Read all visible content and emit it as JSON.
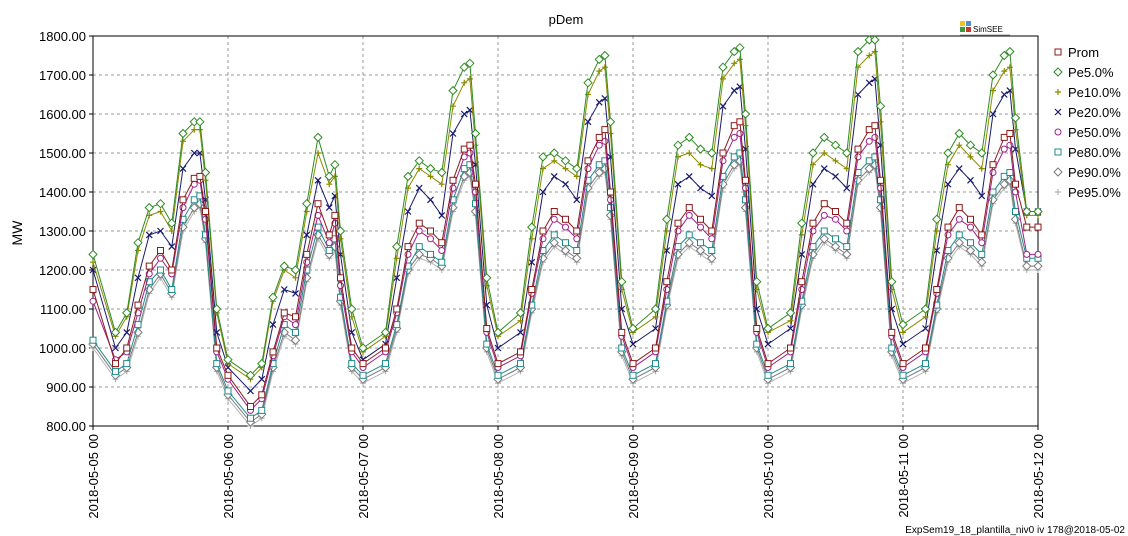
{
  "chart_data": {
    "type": "line",
    "title": "pDem",
    "xlabel": "",
    "ylabel": "MW",
    "ylim": [
      800,
      1800
    ],
    "yticks": [
      "800.00",
      "900.00",
      "1000.00",
      "1100.00",
      "1200.00",
      "1300.00",
      "1400.00",
      "1500.00",
      "1600.00",
      "1700.00",
      "1800.00"
    ],
    "xticks": [
      "2018-05-05 00",
      "2018-05-06 00",
      "2018-05-07 00",
      "2018-05-08 00",
      "2018-05-09 00",
      "2018-05-10 00",
      "2018-05-11 00",
      "2018-05-12 00"
    ],
    "xlim_hours": [
      0,
      168
    ],
    "grid": true,
    "legend_position": "right",
    "x_hours": [
      0,
      4,
      6,
      8,
      10,
      12,
      14,
      16,
      18,
      19,
      20,
      22,
      24,
      28,
      30,
      32,
      34,
      36,
      38,
      40,
      42,
      43,
      44,
      46,
      48,
      52,
      54,
      56,
      58,
      60,
      62,
      64,
      66,
      67,
      68,
      70,
      72,
      76,
      78,
      80,
      82,
      84,
      86,
      88,
      90,
      91,
      92,
      94,
      96,
      100,
      102,
      104,
      106,
      108,
      110,
      112,
      114,
      115,
      116,
      118,
      120,
      124,
      126,
      128,
      130,
      132,
      134,
      136,
      138,
      139,
      140,
      142,
      144,
      148,
      150,
      152,
      154,
      156,
      158,
      160,
      162,
      163,
      164,
      166,
      168
    ],
    "series": [
      {
        "name": "Prom",
        "color": "#8b1a1a",
        "marker": "square",
        "values": [
          1150,
          960,
          1000,
          1110,
          1210,
          1250,
          1200,
          1380,
          1435,
          1440,
          1350,
          1000,
          930,
          850,
          880,
          990,
          1090,
          1080,
          1240,
          1370,
          1290,
          1340,
          1180,
          1000,
          960,
          1000,
          1100,
          1260,
          1320,
          1300,
          1270,
          1430,
          1510,
          1520,
          1420,
          1050,
          960,
          990,
          1150,
          1300,
          1350,
          1330,
          1300,
          1480,
          1540,
          1560,
          1400,
          1040,
          960,
          1000,
          1170,
          1320,
          1360,
          1330,
          1300,
          1500,
          1570,
          1580,
          1430,
          1050,
          960,
          1000,
          1170,
          1320,
          1370,
          1350,
          1320,
          1510,
          1560,
          1570,
          1430,
          1040,
          960,
          1000,
          1150,
          1310,
          1360,
          1330,
          1290,
          1470,
          1540,
          1550,
          1420,
          1310,
          1310
        ]
      },
      {
        "name": "Pe5.0%",
        "color": "#2e8b22",
        "marker": "diamond",
        "values": [
          1240,
          1040,
          1090,
          1270,
          1360,
          1370,
          1320,
          1550,
          1580,
          1580,
          1450,
          1100,
          970,
          930,
          960,
          1130,
          1210,
          1200,
          1370,
          1540,
          1440,
          1470,
          1300,
          1100,
          1000,
          1040,
          1260,
          1440,
          1480,
          1460,
          1450,
          1660,
          1720,
          1730,
          1550,
          1180,
          1040,
          1090,
          1310,
          1490,
          1500,
          1480,
          1460,
          1680,
          1740,
          1750,
          1580,
          1170,
          1050,
          1100,
          1330,
          1520,
          1540,
          1510,
          1500,
          1720,
          1760,
          1770,
          1600,
          1170,
          1050,
          1090,
          1320,
          1500,
          1540,
          1520,
          1500,
          1760,
          1790,
          1790,
          1620,
          1170,
          1060,
          1100,
          1330,
          1500,
          1550,
          1520,
          1500,
          1700,
          1750,
          1760,
          1590,
          1350,
          1350
        ]
      },
      {
        "name": "Pe10.0%",
        "color": "#8b8b00",
        "marker": "plus",
        "values": [
          1220,
          1030,
          1080,
          1250,
          1340,
          1350,
          1300,
          1530,
          1560,
          1560,
          1430,
          1090,
          960,
          920,
          950,
          1120,
          1200,
          1180,
          1350,
          1500,
          1420,
          1440,
          1280,
          1080,
          990,
          1030,
          1230,
          1410,
          1460,
          1440,
          1420,
          1620,
          1680,
          1690,
          1520,
          1160,
          1030,
          1070,
          1280,
          1460,
          1480,
          1460,
          1440,
          1650,
          1710,
          1720,
          1550,
          1150,
          1040,
          1080,
          1300,
          1490,
          1500,
          1470,
          1460,
          1690,
          1730,
          1740,
          1570,
          1150,
          1040,
          1070,
          1290,
          1470,
          1500,
          1480,
          1460,
          1720,
          1750,
          1760,
          1580,
          1150,
          1040,
          1080,
          1300,
          1470,
          1520,
          1490,
          1460,
          1660,
          1710,
          1720,
          1560,
          1340,
          1340
        ]
      },
      {
        "name": "Pe20.0%",
        "color": "#1a1a6e",
        "marker": "x",
        "values": [
          1200,
          1000,
          1040,
          1180,
          1290,
          1300,
          1260,
          1460,
          1500,
          1500,
          1380,
          1040,
          950,
          890,
          920,
          1060,
          1150,
          1140,
          1290,
          1430,
          1360,
          1390,
          1240,
          1040,
          970,
          1010,
          1180,
          1350,
          1410,
          1380,
          1340,
          1550,
          1600,
          1610,
          1470,
          1110,
          1000,
          1040,
          1220,
          1400,
          1440,
          1420,
          1380,
          1580,
          1630,
          1640,
          1490,
          1100,
          1010,
          1050,
          1250,
          1420,
          1440,
          1410,
          1390,
          1620,
          1660,
          1670,
          1510,
          1100,
          1010,
          1050,
          1240,
          1420,
          1460,
          1440,
          1410,
          1650,
          1680,
          1690,
          1520,
          1100,
          1010,
          1050,
          1250,
          1420,
          1460,
          1430,
          1390,
          1600,
          1650,
          1660,
          1510,
          1350,
          1350
        ]
      },
      {
        "name": "Pe50.0%",
        "color": "#a0208a",
        "marker": "circle",
        "values": [
          1120,
          970,
          990,
          1090,
          1190,
          1230,
          1190,
          1360,
          1420,
          1430,
          1330,
          990,
          920,
          840,
          870,
          980,
          1080,
          1060,
          1220,
          1340,
          1270,
          1320,
          1160,
          990,
          950,
          990,
          1090,
          1240,
          1300,
          1280,
          1250,
          1410,
          1490,
          1500,
          1400,
          1040,
          950,
          980,
          1140,
          1280,
          1330,
          1310,
          1280,
          1460,
          1520,
          1530,
          1380,
          1030,
          950,
          990,
          1150,
          1300,
          1340,
          1310,
          1280,
          1480,
          1540,
          1550,
          1410,
          1040,
          950,
          990,
          1150,
          1300,
          1340,
          1330,
          1300,
          1490,
          1530,
          1540,
          1410,
          1030,
          950,
          990,
          1140,
          1290,
          1330,
          1310,
          1270,
          1450,
          1510,
          1520,
          1400,
          1240,
          1240
        ]
      },
      {
        "name": "Pe80.0%",
        "color": "#1f8b8b",
        "marker": "square",
        "values": [
          1020,
          940,
          960,
          1060,
          1170,
          1200,
          1150,
          1330,
          1380,
          1390,
          1290,
          960,
          890,
          820,
          840,
          960,
          1060,
          1040,
          1200,
          1310,
          1250,
          1280,
          1130,
          960,
          930,
          960,
          1060,
          1210,
          1260,
          1240,
          1220,
          1380,
          1460,
          1470,
          1370,
          1010,
          930,
          960,
          1110,
          1250,
          1290,
          1270,
          1250,
          1430,
          1470,
          1480,
          1360,
          1000,
          930,
          960,
          1120,
          1260,
          1290,
          1270,
          1250,
          1440,
          1490,
          1500,
          1380,
          1010,
          930,
          960,
          1120,
          1260,
          1300,
          1280,
          1260,
          1450,
          1480,
          1490,
          1380,
          1000,
          930,
          960,
          1110,
          1250,
          1290,
          1270,
          1240,
          1400,
          1440,
          1450,
          1350,
          1230,
          1230
        ]
      },
      {
        "name": "Pe90.0%",
        "color": "#7a7a7a",
        "marker": "diamond",
        "values": [
          1010,
          930,
          950,
          1040,
          1150,
          1190,
          1140,
          1310,
          1360,
          1370,
          1280,
          950,
          880,
          810,
          830,
          950,
          1040,
          1020,
          1180,
          1290,
          1240,
          1260,
          1120,
          950,
          920,
          950,
          1050,
          1200,
          1240,
          1230,
          1210,
          1360,
          1440,
          1450,
          1350,
          1000,
          920,
          950,
          1100,
          1230,
          1270,
          1250,
          1230,
          1410,
          1450,
          1460,
          1340,
          990,
          920,
          950,
          1110,
          1240,
          1270,
          1250,
          1230,
          1420,
          1470,
          1480,
          1360,
          1000,
          920,
          950,
          1110,
          1240,
          1280,
          1260,
          1240,
          1430,
          1460,
          1470,
          1360,
          990,
          920,
          950,
          1100,
          1230,
          1270,
          1250,
          1220,
          1380,
          1420,
          1430,
          1330,
          1210,
          1210
        ]
      },
      {
        "name": "Pe95.0%",
        "color": "#b4b4b4",
        "marker": "plus",
        "values": [
          1000,
          920,
          940,
          1030,
          1140,
          1180,
          1130,
          1300,
          1350,
          1360,
          1270,
          940,
          870,
          800,
          820,
          940,
          1030,
          1010,
          1170,
          1280,
          1230,
          1250,
          1110,
          940,
          910,
          940,
          1040,
          1190,
          1230,
          1220,
          1200,
          1350,
          1430,
          1440,
          1340,
          990,
          910,
          940,
          1090,
          1220,
          1260,
          1240,
          1220,
          1400,
          1440,
          1450,
          1330,
          980,
          910,
          940,
          1100,
          1230,
          1260,
          1240,
          1220,
          1410,
          1460,
          1470,
          1350,
          990,
          910,
          940,
          1100,
          1230,
          1270,
          1250,
          1230,
          1420,
          1450,
          1460,
          1350,
          980,
          910,
          940,
          1090,
          1220,
          1260,
          1240,
          1210,
          1370,
          1410,
          1420,
          1320,
          1200,
          1200
        ]
      }
    ]
  },
  "logo": {
    "text": "SimSEE",
    "colors": [
      "#f0c420",
      "#4a90d9",
      "#3a9a3a",
      "#c0392b"
    ]
  },
  "footer": {
    "text": "ExpSem19_18_plantilla_niv0 iv 178@2018-05-02"
  }
}
